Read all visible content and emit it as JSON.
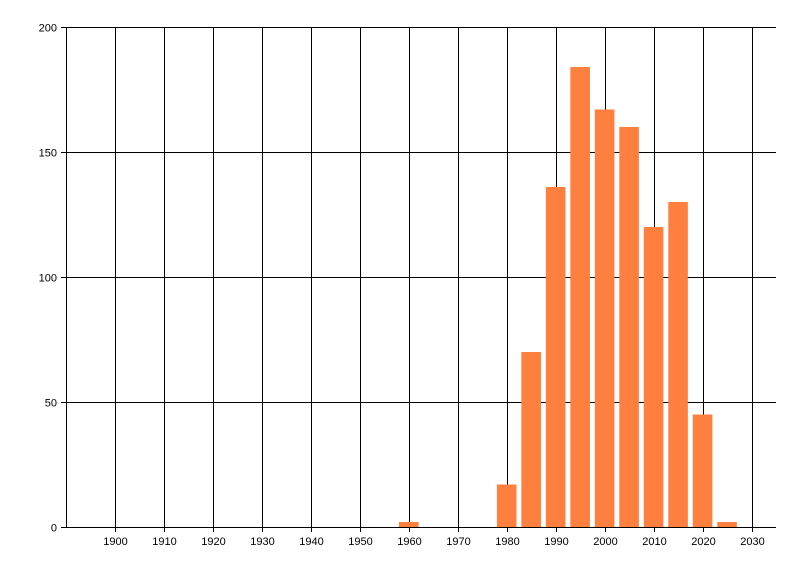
{
  "chart_data": {
    "type": "bar",
    "title": "",
    "xlabel": "",
    "ylabel": "",
    "xlim": [
      1890,
      2035
    ],
    "ylim": [
      0,
      200
    ],
    "x_ticks": [
      1900,
      1910,
      1920,
      1930,
      1940,
      1950,
      1960,
      1970,
      1980,
      1990,
      2000,
      2010,
      2020,
      2030
    ],
    "x_tick_labels": [
      "1900",
      "1910",
      "1920",
      "1930",
      "1940",
      "1950",
      "1960",
      "1970",
      "1980",
      "1990",
      "2000",
      "2010",
      "2020",
      "2030"
    ],
    "y_ticks": [
      0,
      50,
      100,
      150,
      200
    ],
    "y_tick_labels": [
      "0",
      "50",
      "100",
      "150",
      "200"
    ],
    "grid": true,
    "legend": "none",
    "bar_color": "#ff7f3f",
    "bin_width": 5,
    "x": [
      1960,
      1980,
      1985,
      1990,
      1995,
      2000,
      2005,
      2010,
      2015,
      2020,
      2025
    ],
    "values": [
      2,
      17,
      70,
      136,
      184,
      167,
      160,
      120,
      130,
      45,
      2
    ]
  }
}
